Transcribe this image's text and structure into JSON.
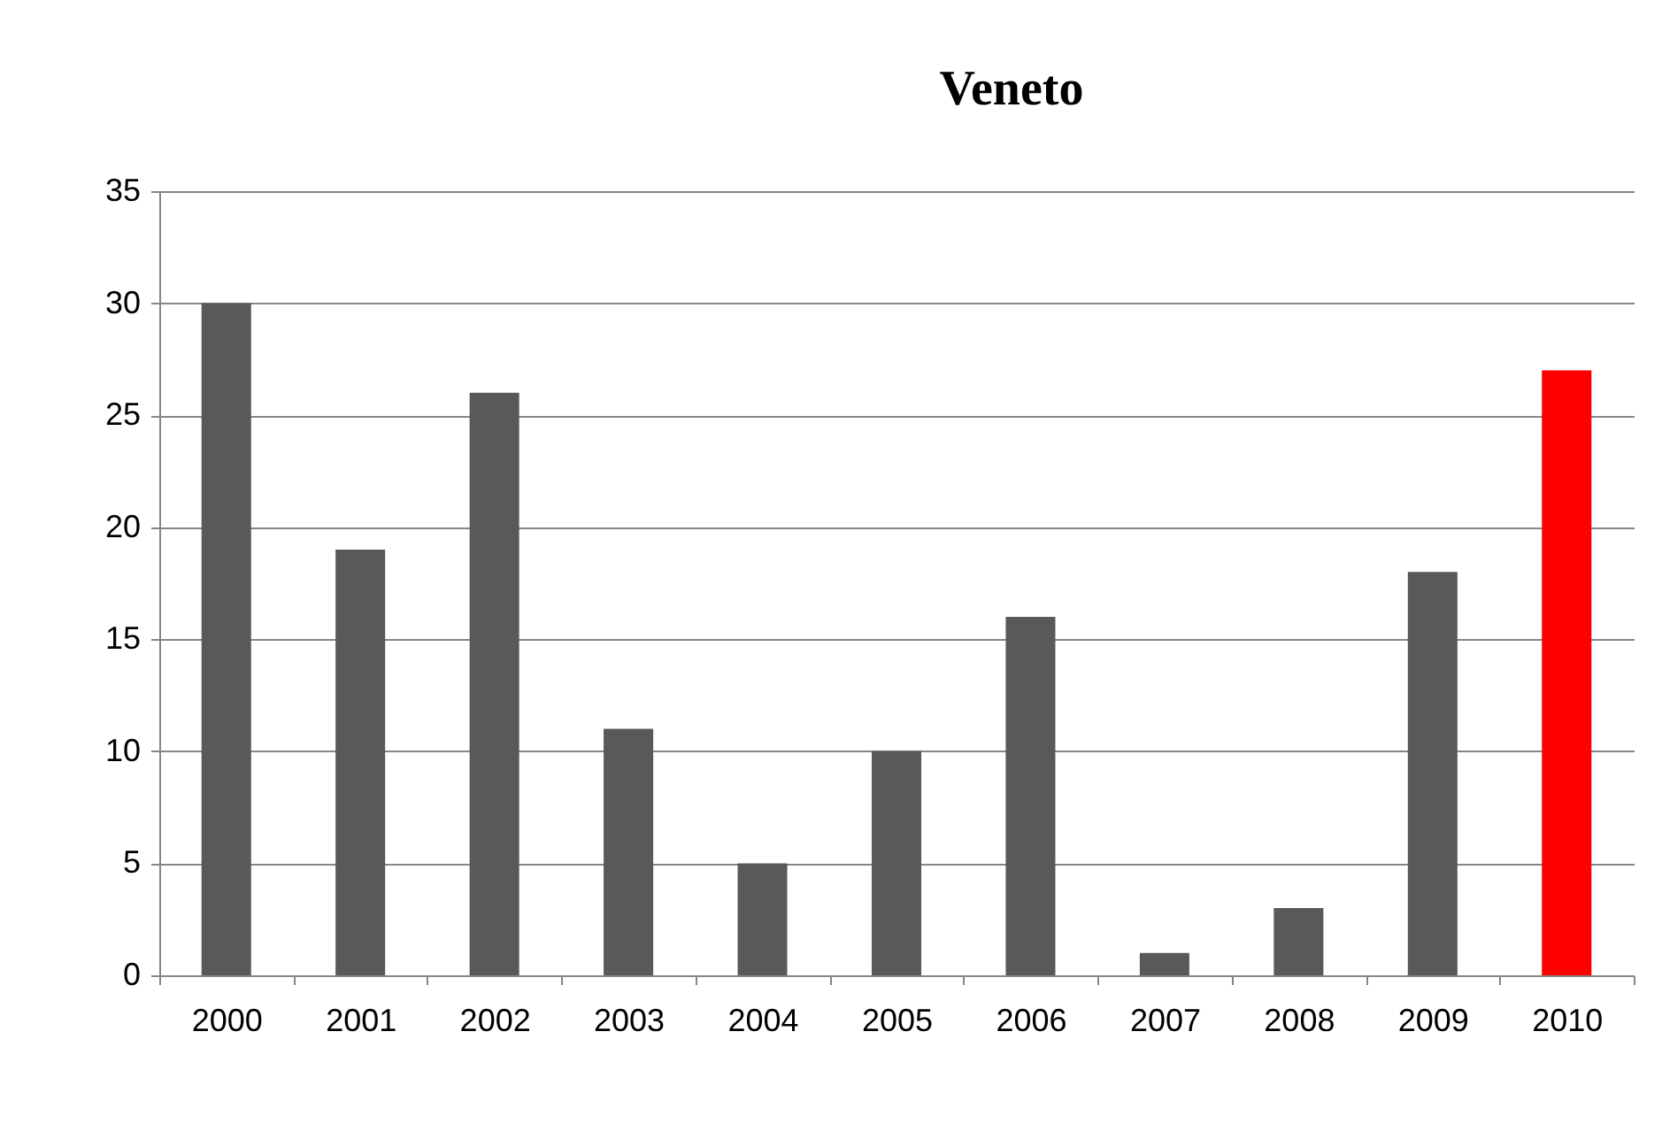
{
  "chart_data": {
    "type": "bar",
    "title": "Veneto",
    "categories": [
      "2000",
      "2001",
      "2002",
      "2003",
      "2004",
      "2005",
      "2006",
      "2007",
      "2008",
      "2009",
      "2010"
    ],
    "values": [
      30,
      19,
      26,
      11,
      5,
      10,
      16,
      1,
      3,
      18,
      27
    ],
    "colors": [
      "#595959",
      "#595959",
      "#595959",
      "#595959",
      "#595959",
      "#595959",
      "#595959",
      "#595959",
      "#595959",
      "#595959",
      "#ff0000"
    ],
    "ylim": [
      0,
      35
    ],
    "yticks": [
      0,
      5,
      10,
      15,
      20,
      25,
      30,
      35
    ],
    "grid": "y"
  }
}
